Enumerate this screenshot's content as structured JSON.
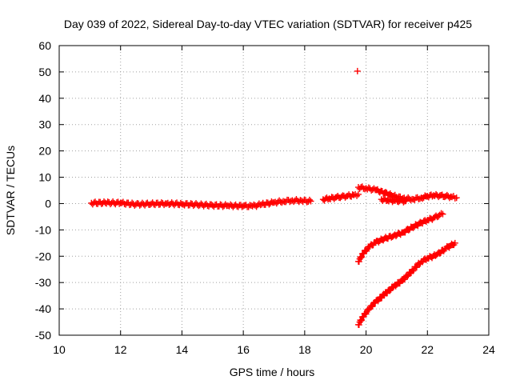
{
  "chart_data": {
    "type": "scatter",
    "title": "Day 039 of 2022, Sidereal Day-to-day VTEC variation (SDTVAR) for receiver p425",
    "xlabel": "GPS time / hours",
    "ylabel": "SDTVAR / TECUs",
    "xlim": [
      10,
      24
    ],
    "ylim": [
      -50,
      60
    ],
    "xticks": [
      10,
      12,
      14,
      16,
      18,
      20,
      22,
      24
    ],
    "yticks": [
      -50,
      -40,
      -30,
      -20,
      -10,
      0,
      10,
      20,
      30,
      40,
      50,
      60
    ],
    "grid": true,
    "marker": "plus",
    "color": "#ff0000",
    "series": [
      {
        "name": "main-band",
        "x": [
          11.05,
          11.5,
          12.0,
          12.5,
          13.0,
          13.5,
          14.0,
          14.5,
          15.0,
          15.5,
          16.0,
          16.3,
          16.6,
          17.0,
          17.3,
          17.6,
          17.9,
          18.2
        ],
        "y": [
          0.2,
          0.3,
          0.2,
          -0.3,
          -0.1,
          0.0,
          -0.2,
          -0.4,
          -0.7,
          -0.8,
          -0.9,
          -1.0,
          -0.3,
          0.4,
          0.9,
          1.2,
          1.1,
          0.9
        ]
      },
      {
        "name": "rising-segment",
        "x": [
          18.6,
          18.8,
          19.0,
          19.2,
          19.4,
          19.6,
          19.75
        ],
        "y": [
          1.6,
          1.9,
          2.3,
          2.6,
          2.9,
          3.2,
          3.5
        ]
      },
      {
        "name": "upper-branch",
        "x": [
          19.75,
          20.0,
          20.3,
          20.6,
          20.9,
          21.2,
          21.5,
          21.8,
          22.0,
          22.2,
          22.4,
          22.6,
          22.8,
          22.95
        ],
        "y": [
          6.2,
          5.8,
          5.2,
          4.1,
          2.9,
          2.0,
          1.7,
          2.2,
          2.8,
          3.1,
          3.0,
          2.8,
          2.5,
          2.2
        ]
      },
      {
        "name": "secondary-branch",
        "x": [
          20.5,
          20.7,
          20.9,
          21.1,
          21.3
        ],
        "y": [
          1.6,
          1.2,
          1.1,
          1.0,
          1.0
        ]
      },
      {
        "name": "middle-branch",
        "x": [
          19.75,
          19.9,
          20.1,
          20.3,
          20.6,
          20.9,
          21.2,
          21.5,
          21.8,
          22.0,
          22.2,
          22.4,
          22.5
        ],
        "y": [
          -22,
          -19,
          -16.5,
          -14.8,
          -13.3,
          -12.2,
          -11.0,
          -9.0,
          -7.3,
          -6.3,
          -5.5,
          -4.3,
          -4.0
        ]
      },
      {
        "name": "lower-branch",
        "x": [
          19.75,
          19.9,
          20.1,
          20.3,
          20.6,
          20.9,
          21.2,
          21.5,
          21.8,
          22.0,
          22.3,
          22.6,
          22.9
        ],
        "y": [
          -46,
          -43,
          -40,
          -37.5,
          -34.5,
          -31.5,
          -29,
          -25.5,
          -22,
          -20.8,
          -19.5,
          -17,
          -15
        ]
      },
      {
        "name": "outlier",
        "x": [
          19.72
        ],
        "y": [
          50.3
        ]
      }
    ]
  }
}
